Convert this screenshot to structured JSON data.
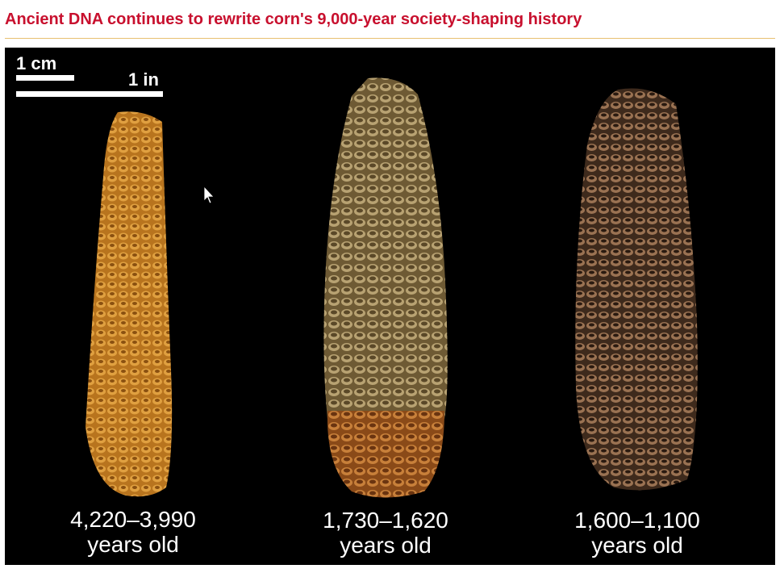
{
  "header": {
    "title": "Ancient DNA continues to rewrite corn's 9,000-year society-shaping history"
  },
  "image": {
    "scale_bar": {
      "cm_label": "1 cm",
      "in_label": "1 in"
    },
    "specimens": [
      {
        "age": "4,220–3,990",
        "unit": "years old"
      },
      {
        "age": "1,730–1,620",
        "unit": "years old"
      },
      {
        "age": "1,600–1,100",
        "unit": "years old"
      }
    ]
  }
}
